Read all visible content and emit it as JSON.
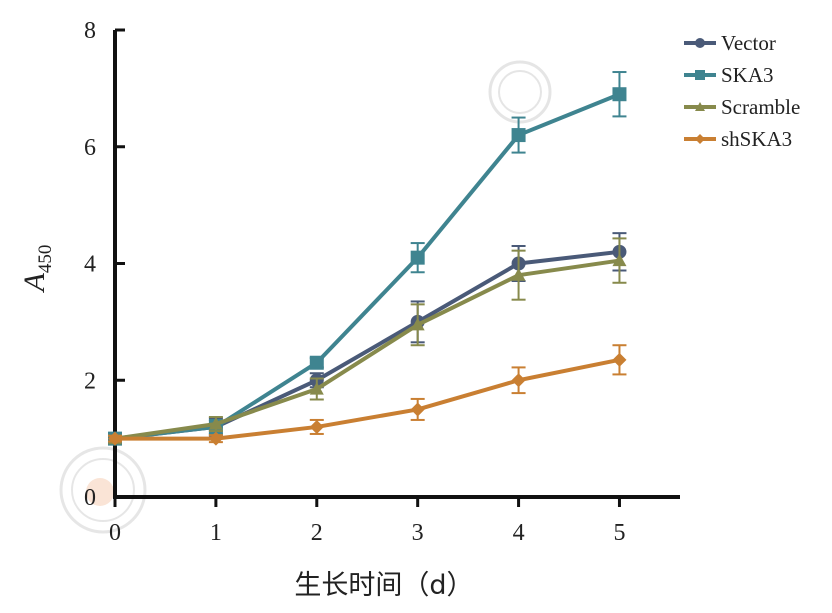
{
  "chart_data": {
    "type": "line",
    "title": "",
    "xlabel": "生长时间（d）",
    "ylabel": {
      "main": "A",
      "subscript": "450"
    },
    "x": [
      0,
      1,
      2,
      3,
      4,
      5
    ],
    "x_tick_labels": [
      "0",
      "1",
      "2",
      "3",
      "4",
      "5"
    ],
    "xlim": [
      0,
      5.6
    ],
    "ylim": [
      0,
      8
    ],
    "y_ticks": [
      0,
      2,
      4,
      6,
      8
    ],
    "y_tick_labels": [
      "0",
      "2",
      "4",
      "6",
      "8"
    ],
    "grid": false,
    "legend_position": "top-right",
    "series": [
      {
        "name": "Vector",
        "color": "#4a5a78",
        "marker": "circle",
        "values": [
          1.0,
          1.2,
          2.0,
          3.0,
          4.0,
          4.2
        ],
        "errors": [
          0.05,
          0.15,
          0.12,
          0.35,
          0.3,
          0.32
        ]
      },
      {
        "name": "SKA3",
        "color": "#3f8490",
        "marker": "square",
        "values": [
          1.0,
          1.2,
          2.3,
          4.1,
          6.2,
          6.9
        ],
        "errors": [
          0.05,
          0.12,
          0.08,
          0.25,
          0.3,
          0.38
        ]
      },
      {
        "name": "Scramble",
        "color": "#878a4c",
        "marker": "triangle",
        "values": [
          1.0,
          1.25,
          1.85,
          2.95,
          3.8,
          4.05
        ],
        "errors": [
          0.05,
          0.12,
          0.18,
          0.35,
          0.42,
          0.38
        ]
      },
      {
        "name": "shSKA3",
        "color": "#c97f32",
        "marker": "diamond",
        "values": [
          1.0,
          1.0,
          1.2,
          1.5,
          2.0,
          2.35
        ],
        "errors": [
          0.05,
          0.06,
          0.12,
          0.18,
          0.22,
          0.25
        ]
      }
    ]
  }
}
